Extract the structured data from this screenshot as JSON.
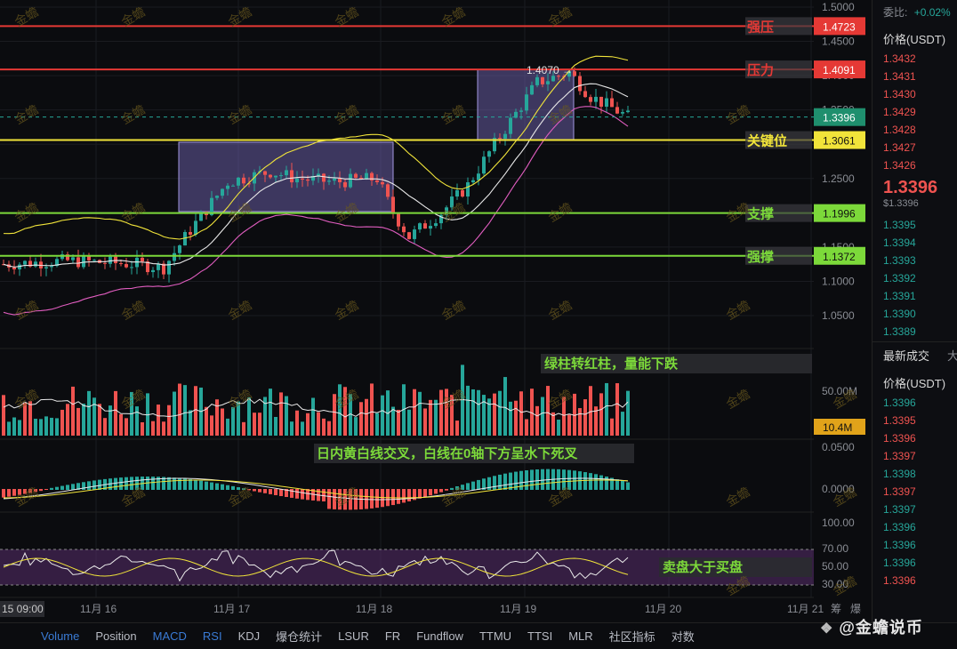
{
  "price_axis": {
    "labels": [
      "1.5000",
      "1.4500",
      "1.4000",
      "1.3500",
      "1.3000",
      "1.2500",
      "1.2000",
      "1.1500",
      "1.1000",
      "1.0500"
    ],
    "current_price": "1.3396",
    "sub_top": "1.3061"
  },
  "levels": [
    {
      "name": "强压",
      "value": "1.4723",
      "color": "#e53935"
    },
    {
      "name": "压力",
      "value": "1.4091",
      "color": "#e53935"
    },
    {
      "name": "关键位",
      "value": "1.3061",
      "color": "#f1e43a"
    },
    {
      "name": "支撑",
      "value": "1.1996",
      "color": "#7cd93a"
    },
    {
      "name": "强撑",
      "value": "1.1372",
      "color": "#7cd93a"
    }
  ],
  "high_marker": "1.4070 →",
  "watermark": "金蟾",
  "volume": {
    "axis_label": "50.00M",
    "current": "10.4M",
    "note": "绿柱转红柱，量能下跌"
  },
  "macd": {
    "axis_top": "0.0500",
    "axis_zero": "0.0000",
    "note": "日内黄白线交叉，白线在0轴下方呈水下死叉"
  },
  "rsi": {
    "axis": [
      "100.00",
      "70.00",
      "50.00",
      "30.00"
    ],
    "note": "卖盘大于买盘"
  },
  "time_axis": {
    "first": "15 09:00",
    "labels": [
      "11月 16",
      "11月 17",
      "11月 18",
      "11月 19",
      "11月 20",
      "11月 21"
    ]
  },
  "orderbook": {
    "ratio_label": "委比:",
    "ratio_value": "+0.02%",
    "header": "价格(USDT)",
    "asks": [
      "1.3432",
      "1.3431",
      "1.3430",
      "1.3429",
      "1.3428",
      "1.3427",
      "1.3426"
    ],
    "last": "1.3396",
    "last_usd": "$1.3396",
    "bids": [
      "1.3395",
      "1.3394",
      "1.3393",
      "1.3392",
      "1.3391",
      "1.3390",
      "1.3389"
    ],
    "trades_title": "最新成交",
    "trades_tab2": "大",
    "trades_header": "价格(USDT)",
    "trades": [
      {
        "p": "1.3396",
        "c": "#26a69a"
      },
      {
        "p": "1.3395",
        "c": "#ef5350"
      },
      {
        "p": "1.3396",
        "c": "#ef5350"
      },
      {
        "p": "1.3397",
        "c": "#ef5350"
      },
      {
        "p": "1.3398",
        "c": "#26a69a"
      },
      {
        "p": "1.3397",
        "c": "#ef5350"
      },
      {
        "p": "1.3397",
        "c": "#26a69a"
      },
      {
        "p": "1.3396",
        "c": "#26a69a"
      },
      {
        "p": "1.3396",
        "c": "#26a69a"
      },
      {
        "p": "1.3396",
        "c": "#26a69a"
      },
      {
        "p": "1.3396",
        "c": "#ef5350"
      }
    ]
  },
  "extra_labels": {
    "small_a": "筹",
    "small_b": "爆"
  },
  "bottom_tabs": [
    {
      "label": "Volume",
      "active": true
    },
    {
      "label": "Position",
      "active": false
    },
    {
      "label": "MACD",
      "active": true
    },
    {
      "label": "RSI",
      "active": true
    },
    {
      "label": "KDJ",
      "active": false
    },
    {
      "label": "爆仓统计",
      "active": false
    },
    {
      "label": "LSUR",
      "active": false
    },
    {
      "label": "FR",
      "active": false
    },
    {
      "label": "Fundflow",
      "active": false
    },
    {
      "label": "TTMU",
      "active": false
    },
    {
      "label": "TTSI",
      "active": false
    },
    {
      "label": "MLR",
      "active": false
    },
    {
      "label": "社区指标",
      "active": false
    },
    {
      "label": "对数",
      "active": false
    }
  ],
  "brand": "@金蟾说币"
}
